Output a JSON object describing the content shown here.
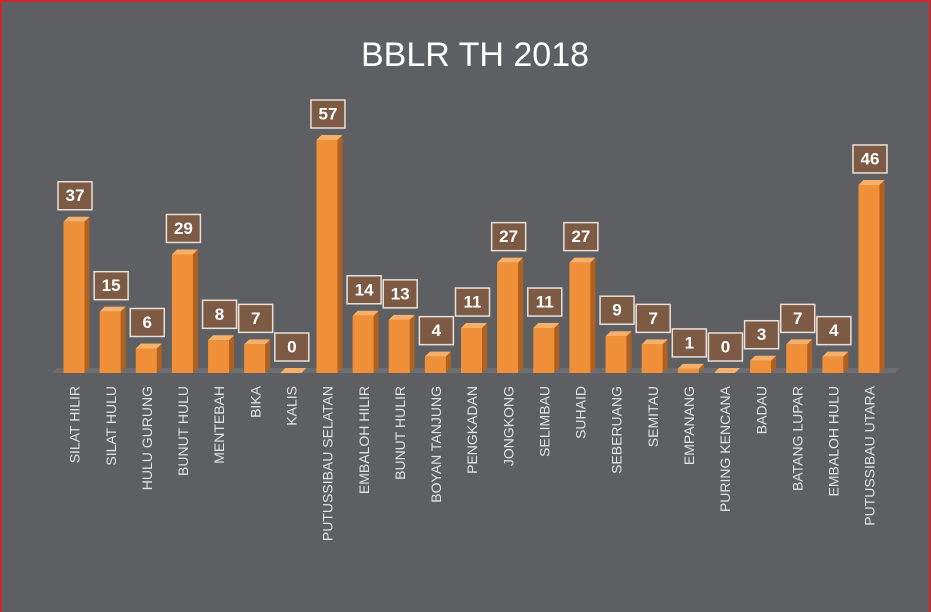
{
  "chart_data": {
    "type": "bar",
    "title": "BBLR TH 2018",
    "categories": [
      "SILAT HILIR",
      "SILAT HULU",
      "HULU GURUNG",
      "BUNUT HULU",
      "MENTEBAH",
      "BIKA",
      "KALIS",
      "PUTUSSIBAU SELATAN",
      "EMBALOH HILIR",
      "BUNUT HULIR",
      "BOYAN TANJUNG",
      "PENGKADAN",
      "JONGKONG",
      "SELIMBAU",
      "SUHAID",
      "SEBERUANG",
      "SEMITAU",
      "EMPANANG",
      "PURING KENCANA",
      "BADAU",
      "BATANG LUPAR",
      "EMBALOH HULU",
      "PUTUSSIBAU UTARA"
    ],
    "values": [
      37,
      15,
      6,
      29,
      8,
      7,
      0,
      57,
      14,
      13,
      4,
      11,
      27,
      11,
      27,
      9,
      7,
      1,
      0,
      3,
      7,
      4,
      46
    ],
    "color": "#f0913a"
  }
}
